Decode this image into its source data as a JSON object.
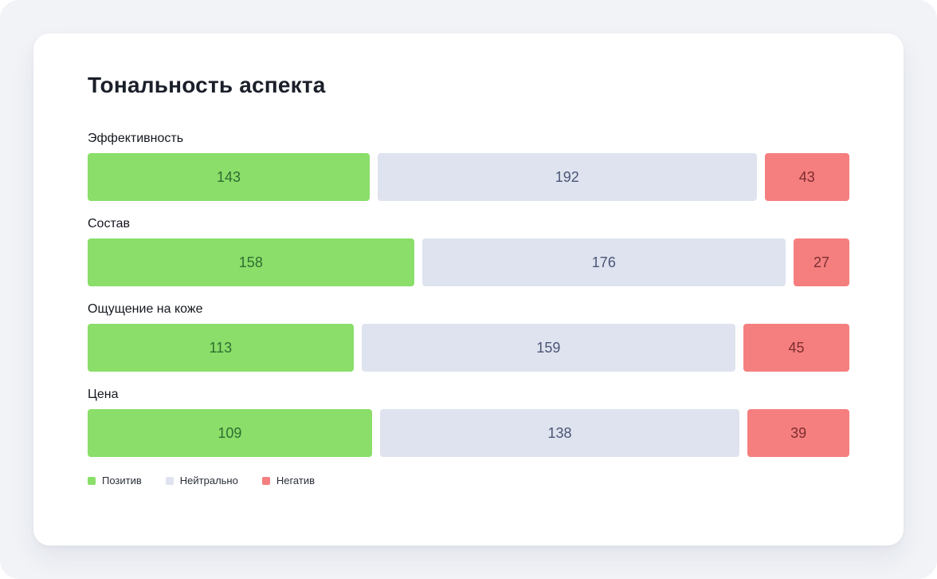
{
  "page": {
    "background_color": "#F1F3F7",
    "card_background_color": "#FFFFFF"
  },
  "card": {
    "title": "Тональность аспекта"
  },
  "chart_data": {
    "type": "bar",
    "variant": "horizontal-stacked",
    "normalization": "each row stretched to full width, segments proportional to values",
    "title": "Тональность аспекта",
    "categories": [
      "Эффективность",
      "Состав",
      "Ощущение на коже",
      "Цена"
    ],
    "series": [
      {
        "name": "Позитив",
        "key": "positive",
        "color": "#8ADE69",
        "text_color": "#306E31",
        "values": [
          143,
          158,
          113,
          109
        ]
      },
      {
        "name": "Нейтрально",
        "key": "neutral",
        "color": "#DEE3EF",
        "text_color": "#4B5676",
        "values": [
          192,
          176,
          159,
          138
        ]
      },
      {
        "name": "Негатив",
        "key": "negative",
        "color": "#F57F7F",
        "text_color": "#7D2D2F",
        "values": [
          43,
          27,
          45,
          39
        ]
      }
    ],
    "value_labels": "inside-center",
    "legend_position": "bottom-left",
    "grid": false,
    "axes": false
  }
}
